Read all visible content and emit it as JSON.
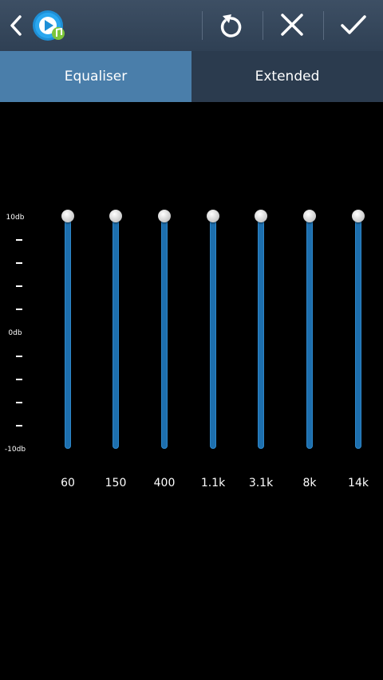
{
  "action_bar": {
    "back_icon": "chevron-left-icon",
    "app_icon": "music-player-app-icon",
    "actions": [
      {
        "name": "reset",
        "icon": "reset-icon"
      },
      {
        "name": "cancel",
        "icon": "close-icon"
      },
      {
        "name": "done",
        "icon": "check-icon"
      }
    ]
  },
  "tabs": [
    {
      "label": "Equaliser",
      "active": true
    },
    {
      "label": "Extended",
      "active": false
    }
  ],
  "scale": {
    "top_label": "10db",
    "mid_label": "0db",
    "bottom_label": "-10db",
    "max_db": 10,
    "min_db": -10
  },
  "bands": [
    {
      "label": "60",
      "value_db": 10
    },
    {
      "label": "150",
      "value_db": 10
    },
    {
      "label": "400",
      "value_db": 10
    },
    {
      "label": "1.1k",
      "value_db": 10
    },
    {
      "label": "3.1k",
      "value_db": 10
    },
    {
      "label": "8k",
      "value_db": 10
    },
    {
      "label": "14k",
      "value_db": 10
    }
  ],
  "colors": {
    "action_bar": "#34465a",
    "tab_active": "#4a7eaa",
    "tab_inactive": "#2b3b4e",
    "slider_track": "#1d6fae"
  }
}
